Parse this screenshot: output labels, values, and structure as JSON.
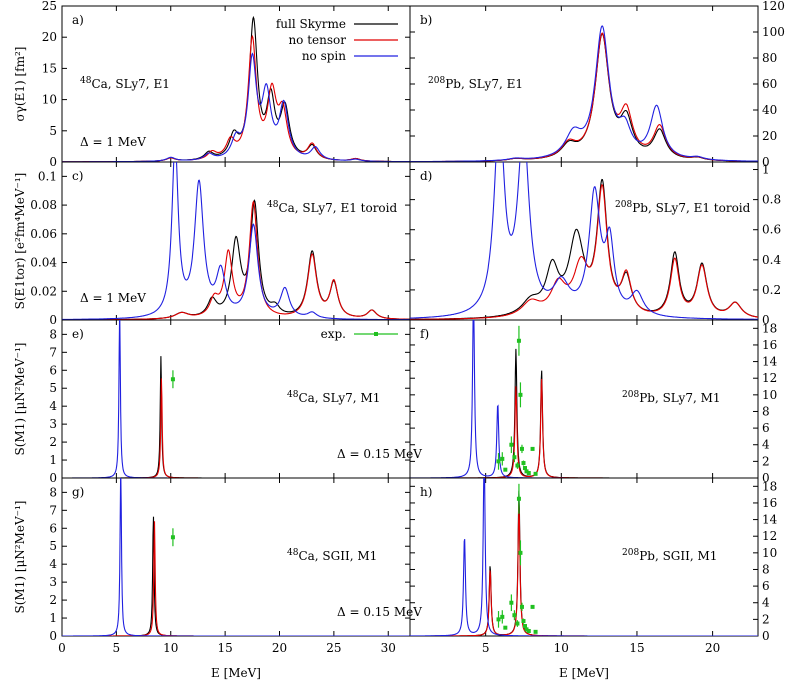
{
  "chart_data": [
    {
      "panel": "a",
      "tag": "a)",
      "label": "48Ca, SLy7, E1",
      "delta": "Δ = 1 MeV",
      "type": "line",
      "yaxis_side": "left",
      "ylabel": "σγ(E1) [fm²]",
      "xlim": [
        0,
        32
      ],
      "ylim": [
        0,
        25
      ],
      "yticks": [
        0,
        5,
        10,
        15,
        20,
        25
      ],
      "legend": [
        "full Skyrme",
        "no tensor",
        "no spin"
      ],
      "series": [
        {
          "name": "full Skyrme",
          "color": "#000000",
          "peaks": [
            [
              10,
              0.5,
              1
            ],
            [
              13.5,
              1.2,
              1
            ],
            [
              15.8,
              3.5,
              1
            ],
            [
              17.6,
              22,
              0.9
            ],
            [
              19.2,
              9,
              0.9
            ],
            [
              20.5,
              8,
              1
            ],
            [
              23,
              2.2,
              1
            ],
            [
              27,
              0.4,
              1
            ]
          ]
        },
        {
          "name": "no tensor",
          "color": "#e00000",
          "peaks": [
            [
              10,
              0.5,
              1
            ],
            [
              13.8,
              1.2,
              1
            ],
            [
              15.5,
              2.8,
              1
            ],
            [
              17.5,
              19,
              0.9
            ],
            [
              19.3,
              10,
              1
            ],
            [
              20.3,
              7,
              1
            ],
            [
              23,
              2.5,
              1
            ],
            [
              27,
              0.4,
              1
            ]
          ]
        },
        {
          "name": "no spin",
          "color": "#2020e0",
          "peaks": [
            [
              10,
              0.6,
              1
            ],
            [
              13.5,
              1,
              1
            ],
            [
              16,
              3,
              1
            ],
            [
              17.5,
              15.5,
              0.9
            ],
            [
              18.8,
              10,
              1
            ],
            [
              20.4,
              8.5,
              1
            ],
            [
              23.3,
              2,
              1
            ],
            [
              27,
              0.3,
              1
            ]
          ]
        }
      ]
    },
    {
      "panel": "b",
      "tag": "b)",
      "label": "208Pb, SLy7, E1",
      "delta": "",
      "type": "line",
      "yaxis_side": "right",
      "xlim": [
        0,
        23
      ],
      "ylim": [
        0,
        120
      ],
      "yticks": [
        0,
        20,
        40,
        60,
        80,
        100,
        120
      ],
      "series": [
        {
          "name": "full Skyrme",
          "color": "#000000",
          "peaks": [
            [
              7,
              1.5,
              1.2
            ],
            [
              10.5,
              10,
              1.2
            ],
            [
              12.7,
              95,
              1.1
            ],
            [
              14.3,
              28,
              1
            ],
            [
              16.5,
              22,
              1
            ],
            [
              19,
              2,
              1
            ]
          ]
        },
        {
          "name": "no tensor",
          "color": "#e00000",
          "peaks": [
            [
              7,
              1.5,
              1.2
            ],
            [
              10.5,
              11,
              1.2
            ],
            [
              12.7,
              95,
              1.1
            ],
            [
              14.3,
              33,
              1
            ],
            [
              16.5,
              25,
              1
            ],
            [
              19,
              2,
              1
            ]
          ]
        },
        {
          "name": "no spin",
          "color": "#2020e0",
          "peaks": [
            [
              7,
              1.5,
              1.2
            ],
            [
              10.8,
              18,
              1.3
            ],
            [
              12.7,
              100,
              1.1
            ],
            [
              14.2,
              20,
              1
            ],
            [
              16.3,
              40,
              1
            ],
            [
              19,
              2,
              1
            ]
          ]
        }
      ]
    },
    {
      "panel": "c",
      "tag": "c)",
      "label": "48Ca, SLy7, E1 toroid",
      "delta": "Δ = 1 MeV",
      "type": "line",
      "yaxis_side": "left",
      "ylabel": "S(E1tor) [e²fm⁴MeV⁻¹]",
      "xlim": [
        0,
        32
      ],
      "ylim": [
        0,
        0.11
      ],
      "yticks": [
        0,
        0.02,
        0.04,
        0.06,
        0.08,
        0.1
      ],
      "series": [
        {
          "name": "full Skyrme",
          "color": "#000000",
          "peaks": [
            [
              11,
              0.004,
              1.5
            ],
            [
              13.8,
              0.012,
              1
            ],
            [
              16,
              0.052,
              1
            ],
            [
              17.7,
              0.078,
              0.9
            ],
            [
              19.6,
              0.006,
              1
            ],
            [
              23,
              0.046,
              1
            ],
            [
              25,
              0.024,
              0.9
            ],
            [
              28.5,
              0.006,
              1
            ]
          ]
        },
        {
          "name": "no tensor",
          "color": "#e00000",
          "peaks": [
            [
              11,
              0.004,
              1.5
            ],
            [
              14,
              0.012,
              1
            ],
            [
              15.3,
              0.044,
              0.9
            ],
            [
              17.6,
              0.08,
              0.9
            ],
            [
              23,
              0.044,
              1
            ],
            [
              25,
              0.025,
              0.9
            ],
            [
              28.5,
              0.006,
              1
            ]
          ]
        },
        {
          "name": "no spin",
          "color": "#2020e0",
          "peaks": [
            [
              10.4,
              0.12,
              0.7
            ],
            [
              12.6,
              0.092,
              1
            ],
            [
              14.6,
              0.03,
              1
            ],
            [
              17.6,
              0.064,
              1
            ],
            [
              20.5,
              0.02,
              1
            ],
            [
              23,
              0.004,
              1
            ]
          ]
        }
      ]
    },
    {
      "panel": "d",
      "tag": "d)",
      "label": "208Pb, SLy7, E1 toroid",
      "delta": "",
      "type": "line",
      "yaxis_side": "right",
      "xlim": [
        0,
        23
      ],
      "ylim": [
        0,
        1.05
      ],
      "yticks": [
        0,
        0.2,
        0.4,
        0.6,
        0.8,
        1
      ],
      "series": [
        {
          "name": "full Skyrme",
          "color": "#000000",
          "peaks": [
            [
              8,
              0.1,
              1.5
            ],
            [
              9.4,
              0.3,
              1
            ],
            [
              11,
              0.52,
              1.2
            ],
            [
              12.7,
              0.85,
              0.8
            ],
            [
              14.3,
              0.24,
              0.8
            ],
            [
              17.5,
              0.42,
              0.7
            ],
            [
              19.3,
              0.35,
              0.8
            ],
            [
              21.5,
              0.1,
              1
            ]
          ]
        },
        {
          "name": "no tensor",
          "color": "#e00000",
          "peaks": [
            [
              8,
              0.1,
              1.5
            ],
            [
              9.8,
              0.2,
              1.2
            ],
            [
              11.3,
              0.32,
              1.2
            ],
            [
              12.7,
              0.82,
              0.8
            ],
            [
              14.3,
              0.26,
              0.8
            ],
            [
              17.5,
              0.38,
              0.7
            ],
            [
              19.3,
              0.34,
              0.8
            ],
            [
              21.5,
              0.1,
              1
            ]
          ]
        },
        {
          "name": "no spin",
          "color": "#2020e0",
          "peaks": [
            [
              5.9,
              1.3,
              0.8
            ],
            [
              7.5,
              1.2,
              0.9
            ],
            [
              10,
              0.2,
              1.3
            ],
            [
              12.2,
              0.8,
              0.9
            ],
            [
              13.2,
              0.45,
              0.7
            ],
            [
              15,
              0.15,
              1
            ]
          ]
        }
      ]
    },
    {
      "panel": "e",
      "tag": "e)",
      "label": "48Ca, SLy7, M1",
      "delta": "Δ = 0.15 MeV",
      "type": "line",
      "yaxis_side": "left",
      "ylabel": "S(M1) [μN²MeV⁻¹]",
      "xlim": [
        0,
        32
      ],
      "ylim": [
        0,
        8.8
      ],
      "yticks": [
        0,
        1,
        2,
        3,
        4,
        5,
        6,
        7,
        8
      ],
      "legend": [
        "exp."
      ],
      "series": [
        {
          "name": "full Skyrme",
          "color": "#000000",
          "peaks": [
            [
              9.1,
              6.8,
              0.15
            ]
          ]
        },
        {
          "name": "no tensor",
          "color": "#e00000",
          "peaks": [
            [
              9.15,
              5.6,
              0.15
            ]
          ]
        },
        {
          "name": "no spin",
          "color": "#2020e0",
          "peaks": [
            [
              5.3,
              9.5,
              0.15
            ]
          ]
        }
      ],
      "exp_points": [
        {
          "x": 10.2,
          "y": 5.5,
          "err": 0.5
        }
      ]
    },
    {
      "panel": "f",
      "tag": "f)",
      "label": "208Pb, SLy7, M1",
      "delta": "",
      "type": "line",
      "yaxis_side": "right",
      "xlim": [
        0,
        23
      ],
      "ylim": [
        0,
        19
      ],
      "yticks": [
        0,
        2,
        4,
        6,
        8,
        10,
        12,
        14,
        16,
        18
      ],
      "series": [
        {
          "name": "full Skyrme",
          "color": "#000000",
          "peaks": [
            [
              7,
              15.5,
              0.15
            ],
            [
              8.7,
              13,
              0.15
            ]
          ]
        },
        {
          "name": "no tensor",
          "color": "#e00000",
          "peaks": [
            [
              7,
              11,
              0.15
            ],
            [
              8.7,
              12,
              0.15
            ]
          ]
        },
        {
          "name": "no spin",
          "color": "#2020e0",
          "peaks": [
            [
              4.2,
              22,
              0.15
            ],
            [
              5.8,
              9,
              0.15
            ]
          ]
        }
      ],
      "exp_points": [
        {
          "x": 5.85,
          "y": 2,
          "err": 1
        },
        {
          "x": 6.1,
          "y": 2.3,
          "err": 0.8
        },
        {
          "x": 6.3,
          "y": 1,
          "err": 0
        },
        {
          "x": 6.7,
          "y": 4,
          "err": 1
        },
        {
          "x": 6.9,
          "y": 2.5,
          "err": 0.6
        },
        {
          "x": 7.1,
          "y": 1.5,
          "err": 0.4
        },
        {
          "x": 7.2,
          "y": 16.5,
          "err": 1.8
        },
        {
          "x": 7.3,
          "y": 10,
          "err": 1.5
        },
        {
          "x": 7.4,
          "y": 3.5,
          "err": 0.5
        },
        {
          "x": 7.5,
          "y": 1.8,
          "err": 0.3
        },
        {
          "x": 7.6,
          "y": 1.2,
          "err": 0
        },
        {
          "x": 7.7,
          "y": 0.8,
          "err": 0
        },
        {
          "x": 7.85,
          "y": 0.6,
          "err": 0
        },
        {
          "x": 8.1,
          "y": 3.5,
          "err": 0
        },
        {
          "x": 8.3,
          "y": 0.5,
          "err": 0
        }
      ]
    },
    {
      "panel": "g",
      "tag": "g)",
      "label": "48Ca, SGII, M1",
      "delta": "Δ = 0.15 MeV",
      "type": "line",
      "yaxis_side": "left",
      "ylabel": "S(M1) [μN²MeV⁻¹]",
      "xlim": [
        0,
        32
      ],
      "ylim": [
        0,
        8.8
      ],
      "yticks": [
        0,
        1,
        2,
        3,
        4,
        5,
        6,
        7,
        8
      ],
      "series": [
        {
          "name": "full Skyrme",
          "color": "#000000",
          "peaks": [
            [
              8.4,
              6.8,
              0.15
            ]
          ]
        },
        {
          "name": "no tensor",
          "color": "#e00000",
          "peaks": [
            [
              8.5,
              6.4,
              0.15
            ]
          ]
        },
        {
          "name": "no spin",
          "color": "#2020e0",
          "peaks": [
            [
              5.4,
              9.5,
              0.15
            ]
          ]
        }
      ],
      "exp_points": [
        {
          "x": 10.2,
          "y": 5.5,
          "err": 0.5
        }
      ]
    },
    {
      "panel": "h",
      "tag": "h)",
      "label": "208Pb, SGII, M1",
      "delta": "",
      "type": "line",
      "yaxis_side": "right",
      "xlim": [
        0,
        23
      ],
      "ylim": [
        0,
        19
      ],
      "yticks": [
        0,
        2,
        4,
        6,
        8,
        10,
        12,
        14,
        16,
        18
      ],
      "series": [
        {
          "name": "full Skyrme",
          "color": "#000000",
          "peaks": [
            [
              5.3,
              8.5,
              0.15
            ],
            [
              7.2,
              17.5,
              0.15
            ]
          ]
        },
        {
          "name": "no tensor",
          "color": "#e00000",
          "peaks": [
            [
              5.3,
              8,
              0.15
            ],
            [
              7.2,
              16,
              0.15
            ]
          ]
        },
        {
          "name": "no spin",
          "color": "#2020e0",
          "peaks": [
            [
              3.6,
              12,
              0.15
            ],
            [
              4.9,
              22,
              0.15
            ]
          ]
        }
      ],
      "exp_points": [
        {
          "x": 5.85,
          "y": 2,
          "err": 1
        },
        {
          "x": 6.1,
          "y": 2.3,
          "err": 0.8
        },
        {
          "x": 6.3,
          "y": 1,
          "err": 0
        },
        {
          "x": 6.7,
          "y": 4,
          "err": 1
        },
        {
          "x": 6.9,
          "y": 2.5,
          "err": 0.6
        },
        {
          "x": 7.1,
          "y": 1.5,
          "err": 0.4
        },
        {
          "x": 7.2,
          "y": 16.5,
          "err": 1.8
        },
        {
          "x": 7.3,
          "y": 10,
          "err": 1.5
        },
        {
          "x": 7.4,
          "y": 3.5,
          "err": 0.5
        },
        {
          "x": 7.5,
          "y": 1.8,
          "err": 0.3
        },
        {
          "x": 7.6,
          "y": 1.2,
          "err": 0
        },
        {
          "x": 7.7,
          "y": 0.8,
          "err": 0
        },
        {
          "x": 7.85,
          "y": 0.6,
          "err": 0
        },
        {
          "x": 8.1,
          "y": 3.5,
          "err": 0
        },
        {
          "x": 8.3,
          "y": 0.5,
          "err": 0
        }
      ]
    }
  ],
  "xticks_left": [
    0,
    5,
    10,
    15,
    20,
    25,
    30
  ],
  "xticks_right": [
    0,
    5,
    10,
    15,
    20
  ],
  "xlabel": "E [MeV]",
  "exp_color": "#20c020"
}
